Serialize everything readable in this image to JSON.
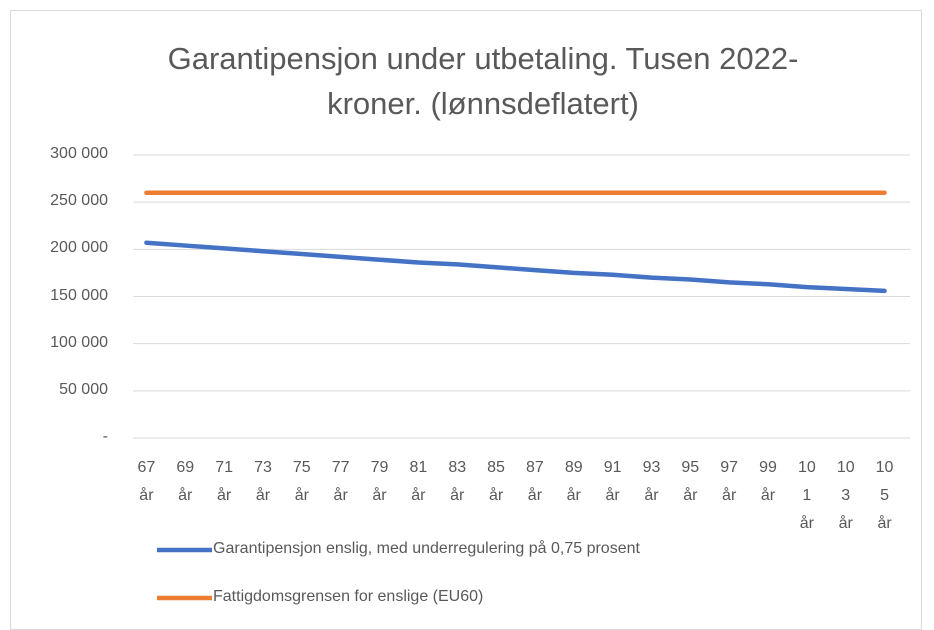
{
  "chart_data": {
    "type": "line",
    "title": "Garantipensjon under utbetaling. Tusen 2022-kroner. (lønnsdeflatert)",
    "categories": [
      "67 år",
      "69 år",
      "71 år",
      "73 år",
      "75 år",
      "77 år",
      "79 år",
      "81 år",
      "83 år",
      "85 år",
      "87 år",
      "89 år",
      "91 år",
      "93 år",
      "95 år",
      "97 år",
      "99 år",
      "101 år",
      "103 år",
      "105 år"
    ],
    "series": [
      {
        "name": "Garantipensjon enslig, med underregulering på 0,75 prosent",
        "color": "#4472c4",
        "values": [
          207000,
          204000,
          201000,
          198000,
          195000,
          192000,
          189000,
          186000,
          184000,
          181000,
          178000,
          175000,
          173000,
          170000,
          168000,
          165000,
          163000,
          160000,
          158000,
          156000
        ]
      },
      {
        "name": "Fattigdomsgrensen for enslige (EU60)",
        "color": "#ed7d31",
        "values": [
          260000,
          260000,
          260000,
          260000,
          260000,
          260000,
          260000,
          260000,
          260000,
          260000,
          260000,
          260000,
          260000,
          260000,
          260000,
          260000,
          260000,
          260000,
          260000,
          260000
        ]
      }
    ],
    "ylim": [
      0,
      300000
    ],
    "yticks": [
      {
        "value": 0,
        "label": "-"
      },
      {
        "value": 50000,
        "label": "50 000"
      },
      {
        "value": 100000,
        "label": "100 000"
      },
      {
        "value": 150000,
        "label": "150 000"
      },
      {
        "value": 200000,
        "label": "200 000"
      },
      {
        "value": 250000,
        "label": "250 000"
      },
      {
        "value": 300000,
        "label": "300 000"
      }
    ],
    "grid": true,
    "legend": "bottom"
  }
}
